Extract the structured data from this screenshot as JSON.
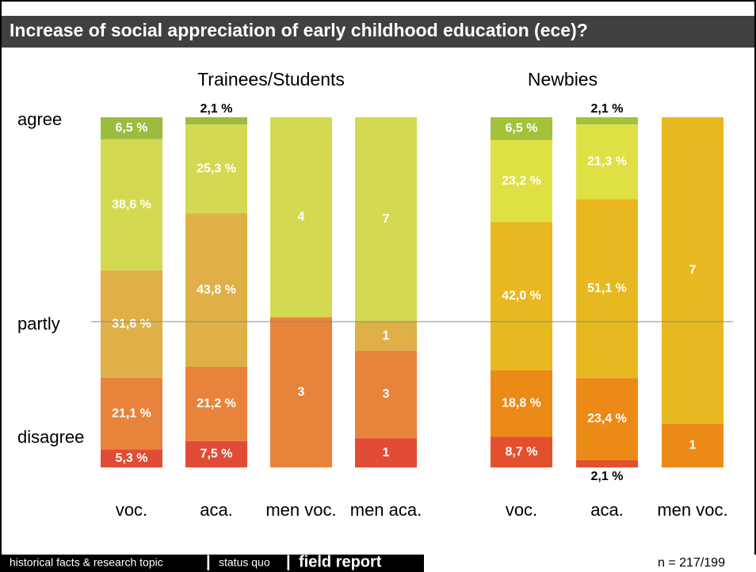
{
  "chart_data": {
    "type": "stacked-bar",
    "title": "Increase of social appreciation of early childhood education (ece)?",
    "scale_labels": [
      "agree",
      "partly",
      "disagree"
    ],
    "groups": [
      {
        "title": "Trainees/Students",
        "categories": [
          "voc.",
          "aca.",
          "men voc.",
          "men aca."
        ],
        "series": [
          {
            "color": "#9dbb3f",
            "values": [
              6.5,
              2.1,
              null,
              null
            ],
            "value_labels": [
              "6,5 %",
              "2,1 %",
              null,
              null
            ]
          },
          {
            "color": "#d3da52",
            "values": [
              38.6,
              25.3,
              4,
              7
            ],
            "value_labels": [
              "38,6 %",
              "25,3 %",
              null,
              null
            ]
          },
          {
            "color": "#dfb048",
            "values": [
              31.6,
              43.8,
              null,
              1
            ],
            "value_labels": [
              "31,6 %",
              "43,8 %",
              null,
              null
            ]
          },
          {
            "color": "#e8833c",
            "values": [
              21.1,
              21.2,
              3,
              3
            ],
            "value_labels": [
              "21,1 %",
              "21,2 %",
              null,
              null
            ]
          },
          {
            "color": "#e04c36",
            "values": [
              5.3,
              7.5,
              null,
              1
            ],
            "value_labels": [
              "5,3 %",
              "7,5 %",
              null,
              null
            ]
          }
        ]
      },
      {
        "title": "Newbies",
        "categories": [
          "voc.",
          "aca.",
          "men voc."
        ],
        "series": [
          {
            "color": "#a3c23a",
            "values": [
              6.5,
              2.1,
              null
            ],
            "value_labels": [
              "6,5 %",
              "2,1 %",
              null
            ]
          },
          {
            "color": "#dfe044",
            "values": [
              23.2,
              21.3,
              null
            ],
            "value_labels": [
              "23,2 %",
              "21,3 %",
              null
            ]
          },
          {
            "color": "#e8b820",
            "values": [
              42.0,
              51.1,
              7
            ],
            "value_labels": [
              "42,0 %",
              "51,1 %",
              null
            ]
          },
          {
            "color": "#ec8a18",
            "values": [
              18.8,
              23.4,
              1
            ],
            "value_labels": [
              "18,8 %",
              "23,4 %",
              null
            ]
          },
          {
            "color": "#e3502e",
            "values": [
              8.7,
              2.1,
              null
            ],
            "value_labels": [
              "8,7 %",
              "2,1 %",
              null
            ]
          }
        ]
      }
    ]
  },
  "footer": {
    "items": [
      "historical facts & research topic",
      "|",
      "status quo",
      "|",
      "field report"
    ],
    "note": "n = 217/199"
  }
}
